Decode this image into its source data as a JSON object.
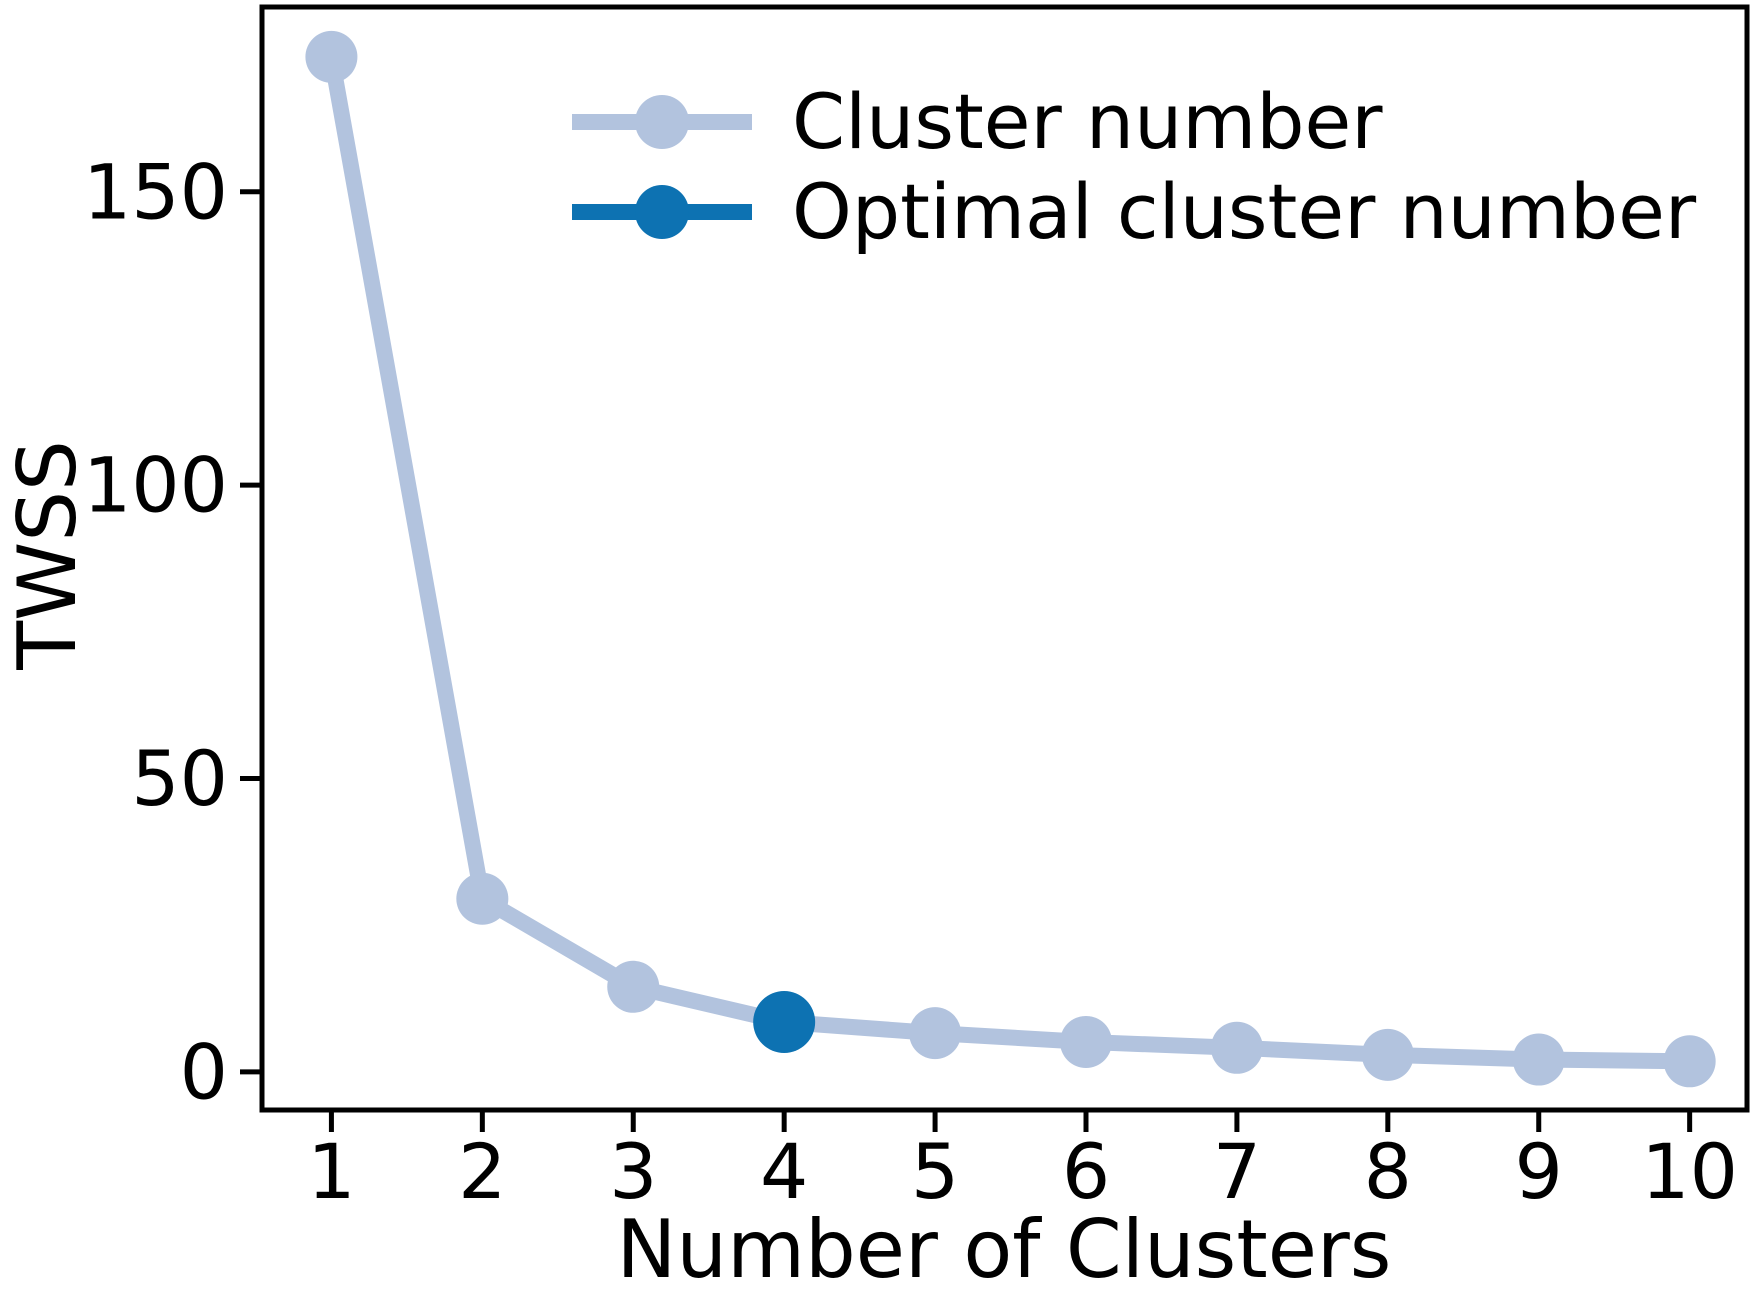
{
  "figure": {
    "background": "#ffffff",
    "axis_color": "#000000",
    "text_color": "#000000"
  },
  "chart_data": {
    "type": "line",
    "title": "",
    "xlabel": "Number of Clusters",
    "ylabel": "TWSS",
    "categories": [
      1,
      2,
      3,
      4,
      5,
      6,
      7,
      8,
      9,
      10
    ],
    "series": [
      {
        "name": "Cluster number",
        "color": "#b2c3de",
        "values": [
          173,
          29.5,
          14.5,
          8.5,
          6.6,
          5.1,
          4.1,
          2.9,
          2.1,
          1.8
        ]
      },
      {
        "name": "Optimal cluster number",
        "color": "#0d72b2",
        "optimal_k": 4,
        "x": 4,
        "value": 8.5
      }
    ],
    "xticks": [
      "1",
      "2",
      "3",
      "4",
      "5",
      "6",
      "7",
      "8",
      "9",
      "10"
    ],
    "yticks": [
      "0",
      "50",
      "100",
      "150"
    ],
    "ytick_values": [
      0,
      50,
      100,
      150
    ],
    "xlim": [
      0.54,
      10.38
    ],
    "ylim": [
      -6.5,
      181.5
    ],
    "grid": false,
    "legend": {
      "position": "upper-left-inside",
      "frame": false
    }
  }
}
